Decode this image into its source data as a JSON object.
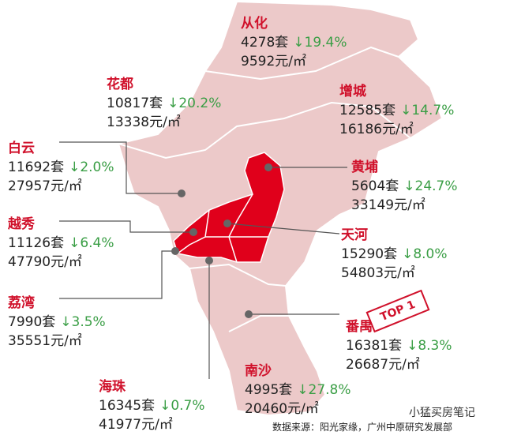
{
  "districts": [
    {
      "name": "从化",
      "units": "4278套",
      "change": "↓19.4%",
      "price": "9592元/㎡"
    },
    {
      "name": "花都",
      "units": "10817套",
      "change": "↓20.2%",
      "price": "13338元/㎡"
    },
    {
      "name": "增城",
      "units": "12585套",
      "change": "↓14.7%",
      "price": "16186元/㎡"
    },
    {
      "name": "白云",
      "units": "11692套",
      "change": "↓2.0%",
      "price": "27957元/㎡"
    },
    {
      "name": "黄埔",
      "units": "5604套",
      "change": "↓24.7%",
      "price": "33149元/㎡"
    },
    {
      "name": "越秀",
      "units": "11126套",
      "change": "↓6.4%",
      "price": "47790元/㎡"
    },
    {
      "name": "天河",
      "units": "15290套",
      "change": "↓8.0%",
      "price": "54803元/㎡"
    },
    {
      "name": "荔湾",
      "units": "7990套",
      "change": "↓3.5%",
      "price": "35551元/㎡"
    },
    {
      "name": "番禺",
      "units": "16381套",
      "change": "↓8.3%",
      "price": "26687元/㎡"
    },
    {
      "name": "海珠",
      "units": "16345套",
      "change": "↓0.7%",
      "price": "41977元/㎡"
    },
    {
      "name": "南沙",
      "units": "4995套",
      "change": "↓27.8%",
      "price": "20460元/㎡"
    }
  ],
  "badge": "TOP 1",
  "source": "数据来源：阳光家缘，广州中原研究发展部",
  "watermark": "小猛买房笔记"
}
